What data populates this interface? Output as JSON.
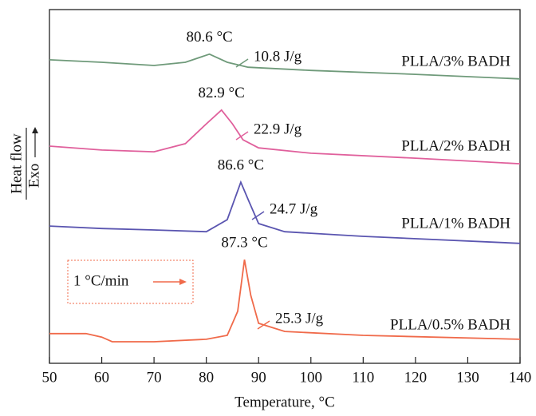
{
  "chart_data": {
    "type": "line",
    "x_label": "Temperature, °C",
    "y_label": "Heat flow",
    "y_direction_label": "Exo",
    "rate_label": "1 °C/min",
    "xlim": [
      50,
      140
    ],
    "xticks": [
      50,
      60,
      70,
      80,
      90,
      100,
      110,
      120,
      130,
      140
    ],
    "ylim": [
      0,
      100
    ],
    "series": [
      {
        "name": "PLLA/3% BADH",
        "color": "#6f9a7a",
        "peak_label": "80.6 °C",
        "enthalpy_label": "10.8 J/g",
        "x": [
          50,
          60,
          70,
          76,
          80.6,
          84,
          88,
          100,
          120,
          140
        ],
        "values": [
          85.8,
          85.1,
          84.2,
          85.1,
          87.4,
          85.1,
          83.7,
          82.8,
          81.7,
          80.4
        ]
      },
      {
        "name": "PLLA/2% BADH",
        "color": "#e0609c",
        "peak_label": "82.9 °C",
        "enthalpy_label": "22.9 J/g",
        "x": [
          50,
          60,
          70,
          76,
          80,
          82.9,
          85,
          87,
          90,
          100,
          120,
          140
        ],
        "values": [
          61.4,
          60.3,
          59.8,
          62.1,
          67.7,
          71.6,
          67.7,
          63.2,
          60.9,
          59.4,
          58.0,
          56.4
        ]
      },
      {
        "name": "PLLA/1% BADH",
        "color": "#5a55b0",
        "peak_label": "86.6 °C",
        "enthalpy_label": "24.7 J/g",
        "x": [
          50,
          60,
          70,
          80,
          84,
          86.6,
          88,
          90,
          95,
          110,
          140
        ],
        "values": [
          38.8,
          38.1,
          37.7,
          37.2,
          40.6,
          51.2,
          46.3,
          39.5,
          37.2,
          35.9,
          33.9
        ]
      },
      {
        "name": "PLLA/0.5% BADH",
        "color": "#f06a4a",
        "peak_label": "87.3 °C",
        "enthalpy_label": "25.3 J/g",
        "x": [
          50,
          57,
          60,
          62,
          70,
          80,
          84,
          86,
          87.3,
          88.5,
          90,
          95,
          110,
          140
        ],
        "values": [
          8.4,
          8.4,
          7.4,
          6.1,
          6.1,
          6.8,
          7.9,
          14.7,
          29.3,
          19.2,
          11.3,
          9.0,
          7.9,
          6.8
        ]
      }
    ]
  }
}
